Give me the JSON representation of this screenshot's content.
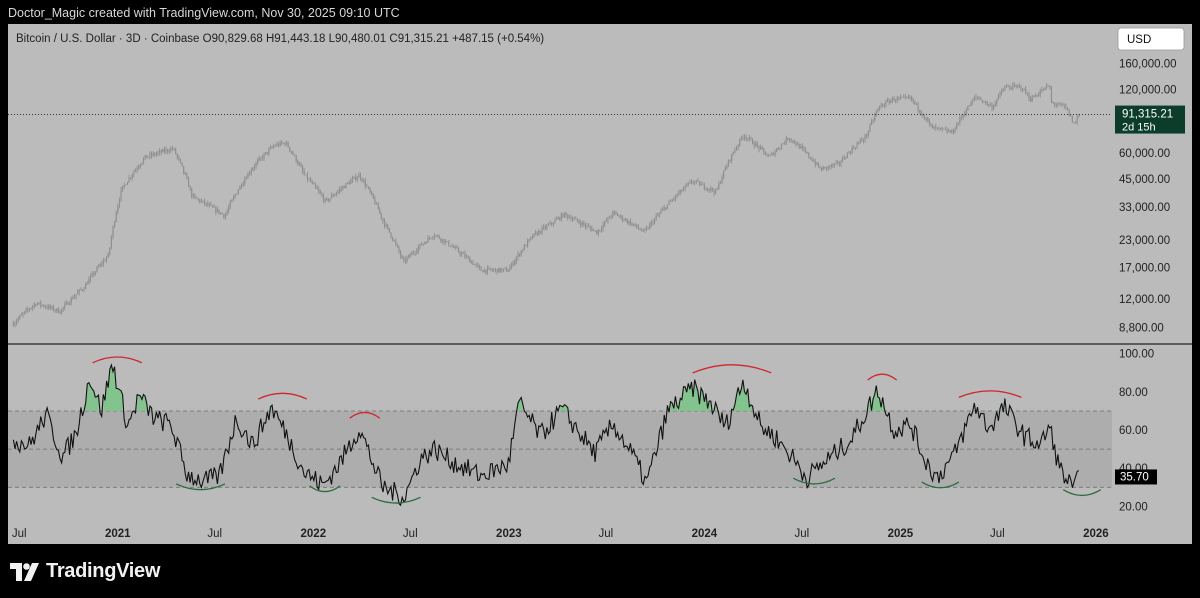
{
  "header": {
    "attribution": "Doctor_Magic created with TradingView.com, Nov 30, 2025 09:10 UTC"
  },
  "branding": {
    "logo_text": "TradingView",
    "logo_icon": "tradingview-logo-icon"
  },
  "colors": {
    "panel_bg": "#bbbbbb",
    "candle": "#8f8f8f",
    "osc_line": "#111111",
    "osc_band": "#adadad",
    "overbought_fill": "#7cc48a",
    "peak_arc": "#d0262d",
    "trough_arc": "#2e6b3c",
    "price_tag_bg": "#0b3d2a",
    "osc_tag_bg": "#000000"
  },
  "chart_data": [
    {
      "type": "candlestick",
      "title": "Bitcoin / U.S. Dollar · 3D · Coinbase",
      "ohlc_readout": {
        "open": "O90,829.68",
        "high": "H91,443.18",
        "low": "L90,480.01",
        "close": "C91,315.21",
        "change": "+487.15 (+0.54%)"
      },
      "currency_button": "USD",
      "y_scale": "log",
      "ylim": [
        7500,
        170000
      ],
      "y_ticks": [
        160000,
        120000,
        60000,
        45000,
        33000,
        23000,
        17000,
        12000,
        8800
      ],
      "y_tick_labels": [
        "160,000.00",
        "120,000.00",
        "60,000.00",
        "45,000.00",
        "33,000.00",
        "23,000.00",
        "17,000.00",
        "12,000.00",
        "8,800.00"
      ],
      "last_price": 91315.21,
      "last_price_label": "91,315.21",
      "countdown_label": "2d 15h",
      "approx_path": [
        [
          "2020-06-20",
          9200
        ],
        [
          "2020-08-01",
          11500
        ],
        [
          "2020-09-15",
          10500
        ],
        [
          "2020-10-31",
          13800
        ],
        [
          "2020-12-15",
          19500
        ],
        [
          "2021-01-08",
          40000
        ],
        [
          "2021-02-21",
          57000
        ],
        [
          "2021-04-14",
          63000
        ],
        [
          "2021-05-20",
          37000
        ],
        [
          "2021-07-20",
          30000
        ],
        [
          "2021-09-07",
          50000
        ],
        [
          "2021-10-20",
          65000
        ],
        [
          "2021-11-10",
          67000
        ],
        [
          "2021-12-15",
          47000
        ],
        [
          "2022-01-24",
          35000
        ],
        [
          "2022-03-28",
          47000
        ],
        [
          "2022-05-12",
          28000
        ],
        [
          "2022-06-18",
          18000
        ],
        [
          "2022-08-14",
          24500
        ],
        [
          "2022-11-10",
          16500
        ],
        [
          "2022-12-31",
          16500
        ],
        [
          "2023-02-15",
          24000
        ],
        [
          "2023-03-25",
          28000
        ],
        [
          "2023-04-14",
          30500
        ],
        [
          "2023-06-15",
          25000
        ],
        [
          "2023-07-15",
          31000
        ],
        [
          "2023-09-11",
          25000
        ],
        [
          "2023-10-25",
          34000
        ],
        [
          "2023-12-10",
          44000
        ],
        [
          "2024-01-23",
          39000
        ],
        [
          "2024-03-14",
          73000
        ],
        [
          "2024-05-01",
          57000
        ],
        [
          "2024-06-07",
          71000
        ],
        [
          "2024-08-05",
          50000
        ],
        [
          "2024-09-07",
          53000
        ],
        [
          "2024-10-29",
          72000
        ],
        [
          "2024-11-22",
          99000
        ],
        [
          "2024-12-17",
          108000
        ],
        [
          "2025-01-20",
          109000
        ],
        [
          "2025-02-28",
          79000
        ],
        [
          "2025-04-08",
          75000
        ],
        [
          "2025-05-22",
          111000
        ],
        [
          "2025-06-22",
          99000
        ],
        [
          "2025-07-14",
          123000
        ],
        [
          "2025-08-14",
          124000
        ],
        [
          "2025-09-01",
          108000
        ],
        [
          "2025-10-06",
          126000
        ],
        [
          "2025-10-10",
          104000
        ],
        [
          "2025-11-05",
          99000
        ],
        [
          "2025-11-21",
          82000
        ],
        [
          "2025-11-30",
          91315
        ]
      ]
    },
    {
      "type": "line",
      "series_kind": "oscillator (0–100)",
      "ylim": [
        15,
        104
      ],
      "y_ticks": [
        100,
        80,
        60,
        40,
        20
      ],
      "y_tick_labels": [
        "100.00",
        "80.00",
        "60.00",
        "40.00",
        "20.00"
      ],
      "band": [
        30,
        70
      ],
      "midline": 50,
      "last_value": 35.7,
      "last_value_label": "35.70",
      "approx_path": [
        [
          "2020-06-20",
          55
        ],
        [
          "2020-07-20",
          52
        ],
        [
          "2020-08-20",
          68
        ],
        [
          "2020-09-20",
          46
        ],
        [
          "2020-10-15",
          58
        ],
        [
          "2020-11-10",
          88
        ],
        [
          "2020-12-01",
          70
        ],
        [
          "2020-12-22",
          95
        ],
        [
          "2021-01-20",
          62
        ],
        [
          "2021-02-10",
          78
        ],
        [
          "2021-03-10",
          66
        ],
        [
          "2021-04-10",
          63
        ],
        [
          "2021-05-10",
          37
        ],
        [
          "2021-06-10",
          33
        ],
        [
          "2021-07-10",
          36
        ],
        [
          "2021-08-10",
          66
        ],
        [
          "2021-09-10",
          52
        ],
        [
          "2021-10-15",
          72
        ],
        [
          "2021-11-10",
          59
        ],
        [
          "2021-12-15",
          38
        ],
        [
          "2022-01-20",
          31
        ],
        [
          "2022-02-20",
          43
        ],
        [
          "2022-03-28",
          61
        ],
        [
          "2022-05-10",
          30
        ],
        [
          "2022-06-20",
          25
        ],
        [
          "2022-07-20",
          45
        ],
        [
          "2022-08-15",
          50
        ],
        [
          "2022-09-20",
          43
        ],
        [
          "2022-11-10",
          36
        ],
        [
          "2022-12-31",
          42
        ],
        [
          "2023-01-20",
          74
        ],
        [
          "2023-03-01",
          57
        ],
        [
          "2023-04-10",
          71
        ],
        [
          "2023-06-10",
          48
        ],
        [
          "2023-07-15",
          63
        ],
        [
          "2023-08-20",
          47
        ],
        [
          "2023-09-15",
          32
        ],
        [
          "2023-10-25",
          70
        ],
        [
          "2023-12-10",
          82
        ],
        [
          "2024-01-15",
          73
        ],
        [
          "2024-02-10",
          62
        ],
        [
          "2024-03-14",
          86
        ],
        [
          "2024-04-15",
          62
        ],
        [
          "2024-05-10",
          57
        ],
        [
          "2024-06-10",
          47
        ],
        [
          "2024-07-10",
          35
        ],
        [
          "2024-08-20",
          45
        ],
        [
          "2024-10-01",
          55
        ],
        [
          "2024-11-20",
          81
        ],
        [
          "2024-12-20",
          60
        ],
        [
          "2025-01-20",
          63
        ],
        [
          "2025-02-15",
          45
        ],
        [
          "2025-03-10",
          35
        ],
        [
          "2025-04-10",
          46
        ],
        [
          "2025-05-20",
          73
        ],
        [
          "2025-06-15",
          61
        ],
        [
          "2025-07-14",
          72
        ],
        [
          "2025-08-20",
          57
        ],
        [
          "2025-09-20",
          52
        ],
        [
          "2025-10-06",
          62
        ],
        [
          "2025-10-25",
          40
        ],
        [
          "2025-11-21",
          28
        ],
        [
          "2025-11-30",
          35.7
        ]
      ]
    }
  ],
  "x_axis": {
    "labels": [
      {
        "text": "Jul",
        "date": "2020-07-01",
        "bold": false
      },
      {
        "text": "2021",
        "date": "2021-01-01",
        "bold": true
      },
      {
        "text": "Jul",
        "date": "2021-07-01",
        "bold": false
      },
      {
        "text": "2022",
        "date": "2022-01-01",
        "bold": true
      },
      {
        "text": "Jul",
        "date": "2022-07-01",
        "bold": false
      },
      {
        "text": "2023",
        "date": "2023-01-01",
        "bold": true
      },
      {
        "text": "Jul",
        "date": "2023-07-01",
        "bold": false
      },
      {
        "text": "2024",
        "date": "2024-01-01",
        "bold": true
      },
      {
        "text": "Jul",
        "date": "2024-07-01",
        "bold": false
      },
      {
        "text": "2025",
        "date": "2025-01-01",
        "bold": true
      },
      {
        "text": "Jul",
        "date": "2025-07-01",
        "bold": false
      },
      {
        "text": "2026",
        "date": "2026-01-01",
        "bold": true
      }
    ]
  },
  "annotations": {
    "peak_arcs": [
      {
        "from": "2020-11-15",
        "to": "2021-02-15",
        "level": 96
      },
      {
        "from": "2021-09-20",
        "to": "2021-12-20",
        "level": 77
      },
      {
        "from": "2022-03-10",
        "to": "2022-05-05",
        "level": 67
      },
      {
        "from": "2023-12-10",
        "to": "2024-05-05",
        "level": 91
      },
      {
        "from": "2024-11-01",
        "to": "2024-12-25",
        "level": 87
      },
      {
        "from": "2025-04-20",
        "to": "2025-08-15",
        "level": 78
      }
    ],
    "trough_arcs": [
      {
        "from": "2021-04-20",
        "to": "2021-07-20",
        "level": 31
      },
      {
        "from": "2021-12-25",
        "to": "2022-02-20",
        "level": 30
      },
      {
        "from": "2022-04-20",
        "to": "2022-07-20",
        "level": 24
      },
      {
        "from": "2024-06-15",
        "to": "2024-09-01",
        "level": 34
      },
      {
        "from": "2025-02-10",
        "to": "2025-04-20",
        "level": 32
      },
      {
        "from": "2025-11-01",
        "to": "2026-01-10",
        "level": 28
      }
    ]
  }
}
